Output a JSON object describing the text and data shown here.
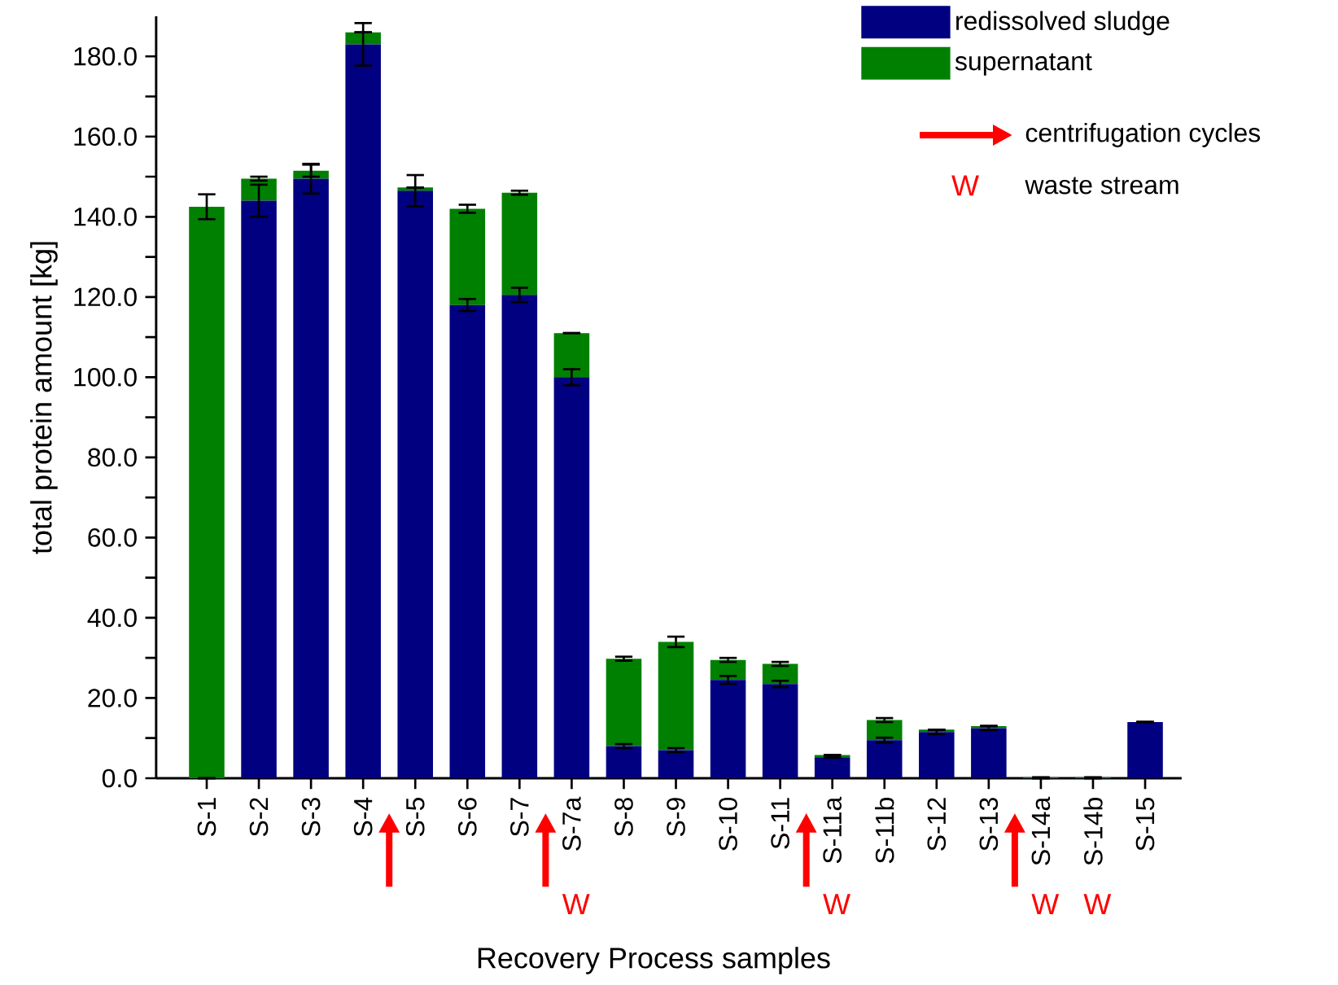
{
  "chart_data": {
    "type": "bar",
    "stacked": true,
    "xlabel": "Recovery Process samples",
    "ylabel": "total protein amount [kg]",
    "categories": [
      "S-1",
      "S-2",
      "S-3",
      "S-4",
      "S-5",
      "S-6",
      "S-7",
      "S-7a",
      "S-8",
      "S-9",
      "S-10",
      "S-11",
      "S-11a",
      "S-11b",
      "S-12",
      "S-13",
      "S-14a",
      "S-14b",
      "S-15"
    ],
    "series": [
      {
        "name": "redissolved sludge",
        "color": "#000080",
        "values": [
          0,
          144,
          149.5,
          183,
          146.5,
          118,
          120.5,
          100,
          8,
          7,
          24.5,
          23.5,
          5.2,
          9.5,
          11.5,
          12.5,
          0,
          0,
          14
        ],
        "errors": [
          null,
          4,
          3.7,
          5.3,
          3.9,
          1.5,
          1.8,
          2,
          0.5,
          0.5,
          1,
          0.8,
          null,
          0.6,
          0.5,
          0.5,
          null,
          null,
          null
        ]
      },
      {
        "name": "supernatant",
        "color": "#008000",
        "values": [
          142.5,
          5.5,
          2,
          3,
          0.8,
          24,
          25.5,
          11,
          21.8,
          27,
          5,
          5,
          0.6,
          5,
          0.6,
          0.5,
          0.2,
          0.2,
          0
        ],
        "errors": [
          3.1,
          0.5,
          1.5,
          null,
          null,
          1,
          0.5,
          null,
          0.5,
          1.3,
          0.5,
          0.5,
          null,
          0.5,
          null,
          null,
          null,
          null,
          null
        ]
      }
    ],
    "ylim": [
      0,
      190
    ],
    "yticks": [
      {
        "value": 0,
        "label": "0.0"
      },
      {
        "value": 10,
        "label": null
      },
      {
        "value": 20,
        "label": "20.0"
      },
      {
        "value": 30,
        "label": null
      },
      {
        "value": 40,
        "label": "40.0"
      },
      {
        "value": 50,
        "label": null
      },
      {
        "value": 60,
        "label": "60.0"
      },
      {
        "value": 70,
        "label": null
      },
      {
        "value": 80,
        "label": "80.0"
      },
      {
        "value": 90,
        "label": null
      },
      {
        "value": 100,
        "label": "100.0"
      },
      {
        "value": 110,
        "label": null
      },
      {
        "value": 120,
        "label": "120.0"
      },
      {
        "value": 130,
        "label": null
      },
      {
        "value": 140,
        "label": "140.0"
      },
      {
        "value": 150,
        "label": null
      },
      {
        "value": 160,
        "label": "160.0"
      },
      {
        "value": 170,
        "label": null
      },
      {
        "value": 180,
        "label": "180.0"
      }
    ],
    "annotations": [
      "centrifugation cycles",
      "waste stream",
      "W",
      "W",
      "W",
      "W",
      "W"
    ],
    "legend": "top right"
  }
}
